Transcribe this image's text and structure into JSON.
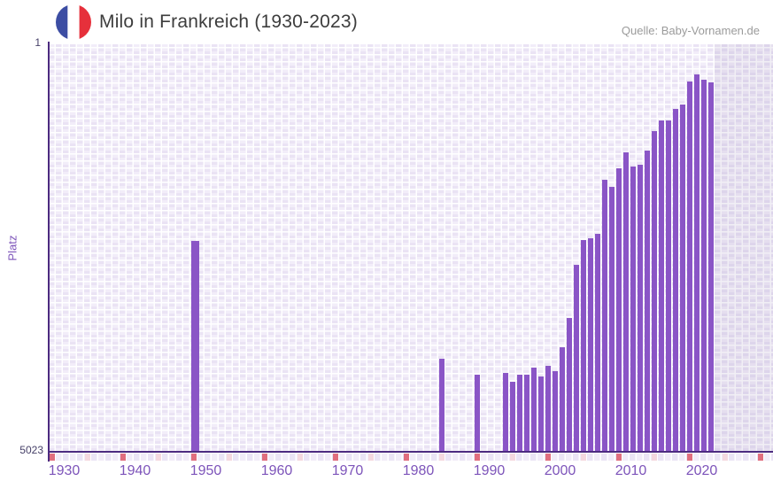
{
  "header": {
    "title": "Milo in Frankreich (1930-2023)",
    "source": "Quelle: Baby-Vornamen.de",
    "flag_colors": {
      "blue": "#3c4da3",
      "white": "#ffffff",
      "red": "#e6303b"
    }
  },
  "chart_data": {
    "type": "bar",
    "title": "Milo in Frankreich (1930-2023)",
    "xlabel": "",
    "ylabel": "Platz",
    "y_axis": {
      "top_tick_label": "1",
      "bottom_tick_label": "5023",
      "ylim": [
        1,
        5023
      ],
      "scale": "sqrt",
      "inverted": true
    },
    "x_axis": {
      "domain": [
        1930,
        2032
      ],
      "tick_years": [
        1930,
        1940,
        1950,
        1960,
        1970,
        1980,
        1990,
        2000,
        2010,
        2020
      ],
      "grid": true
    },
    "legend": null,
    "series_name": "Platz (Rang des Vornamens Milo in Frankreich)",
    "points": [
      {
        "year": 1950,
        "rank": 1208,
        "wide": true
      },
      {
        "year": 1985,
        "rank": 3023
      },
      {
        "year": 1990,
        "rank": 3332
      },
      {
        "year": 1994,
        "rank": 3297
      },
      {
        "year": 1995,
        "rank": 3474
      },
      {
        "year": 1996,
        "rank": 3332
      },
      {
        "year": 1997,
        "rank": 3332
      },
      {
        "year": 1998,
        "rank": 3193
      },
      {
        "year": 1999,
        "rank": 3367
      },
      {
        "year": 2000,
        "rank": 3158
      },
      {
        "year": 2001,
        "rank": 3262
      },
      {
        "year": 2002,
        "rank": 2810
      },
      {
        "year": 2003,
        "rank": 2303
      },
      {
        "year": 2004,
        "rank": 1510
      },
      {
        "year": 2005,
        "rank": 1198
      },
      {
        "year": 2006,
        "rank": 1177
      },
      {
        "year": 2007,
        "rank": 1125
      },
      {
        "year": 2008,
        "rank": 589
      },
      {
        "year": 2009,
        "rank": 649
      },
      {
        "year": 2010,
        "rank": 497
      },
      {
        "year": 2011,
        "rank": 382
      },
      {
        "year": 2012,
        "rank": 483
      },
      {
        "year": 2013,
        "rank": 470
      },
      {
        "year": 2014,
        "rank": 370
      },
      {
        "year": 2015,
        "rank": 253
      },
      {
        "year": 2016,
        "rank": 198
      },
      {
        "year": 2017,
        "rank": 198
      },
      {
        "year": 2018,
        "rank": 146
      },
      {
        "year": 2019,
        "rank": 129
      },
      {
        "year": 2020,
        "rank": 55
      },
      {
        "year": 2021,
        "rank": 38
      },
      {
        "year": 2022,
        "rank": 50
      },
      {
        "year": 2023,
        "rank": 57
      }
    ],
    "no_data_shade_from_year": 2024,
    "axis_marks": {
      "decade_years": [
        1930,
        1940,
        1950,
        1960,
        1970,
        1980,
        1990,
        2000,
        2010,
        2020,
        2030
      ],
      "half_decade_years": [
        1935,
        1945,
        1955,
        1965,
        1975,
        1985,
        1995,
        2005,
        2015,
        2025
      ]
    },
    "colors": {
      "bar": "#8a55c6",
      "axis_line": "#4c2b80",
      "grid_cell_dark": "#eae3f4",
      "grid_cell_light": "#f2edf9",
      "grid_line": "#ffffff",
      "x_tick_label": "#7d54ba",
      "y_tick_label": "#474169",
      "y_axis_label": "#7d54ba",
      "title_text": "#3d3d3d",
      "source_text": "#9b9b9b",
      "mark_decade": "#e06e7e",
      "mark_half_decade": "#f4d8df",
      "no_data_shade": "rgba(90,70,140,0.085)"
    }
  }
}
